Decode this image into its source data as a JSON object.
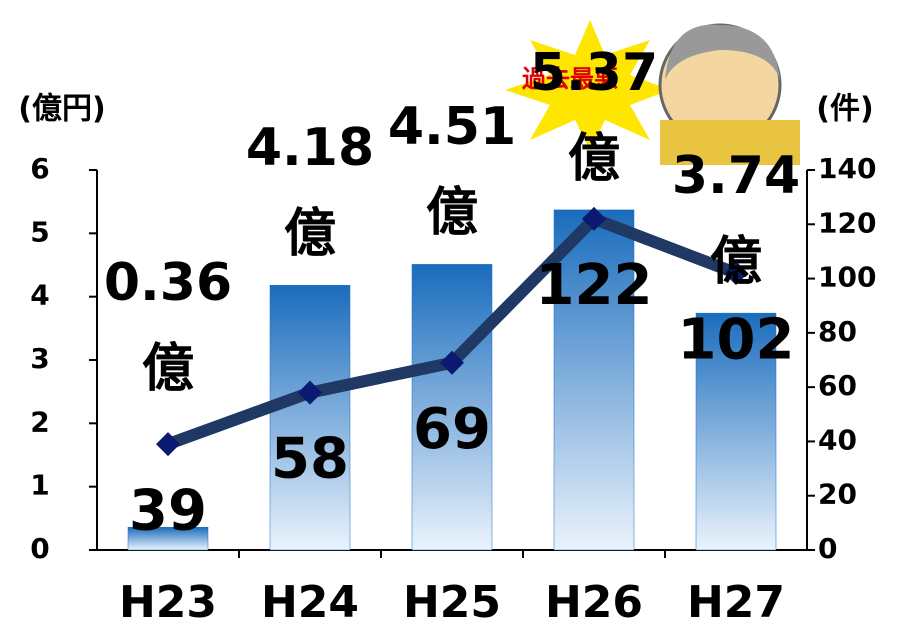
{
  "chart_data": {
    "type": "bar",
    "y_label": "(億円)",
    "y2_label": "(件)",
    "annotation": "過去最悪",
    "categories": [
      "H23",
      "H24",
      "H25",
      "H26",
      "H27"
    ],
    "series": [
      {
        "type": "bar",
        "color": "#1f6fc0",
        "values": [
          0.36,
          4.18,
          4.51,
          5.37,
          3.74
        ],
        "value_labels": [
          "0.36億",
          "4.18億",
          "4.51億",
          "5.37億",
          "3.74億"
        ]
      },
      {
        "type": "line",
        "axis": "y2",
        "color": "#1f3864",
        "values": [
          39,
          58,
          69,
          122,
          102
        ]
      }
    ],
    "ylim": [
      0,
      6
    ],
    "yticks": [
      0,
      1,
      2,
      3,
      4,
      5,
      6
    ],
    "y2lim": [
      0,
      140
    ],
    "y2ticks": [
      0,
      20,
      40,
      60,
      80,
      100,
      120,
      140
    ]
  }
}
